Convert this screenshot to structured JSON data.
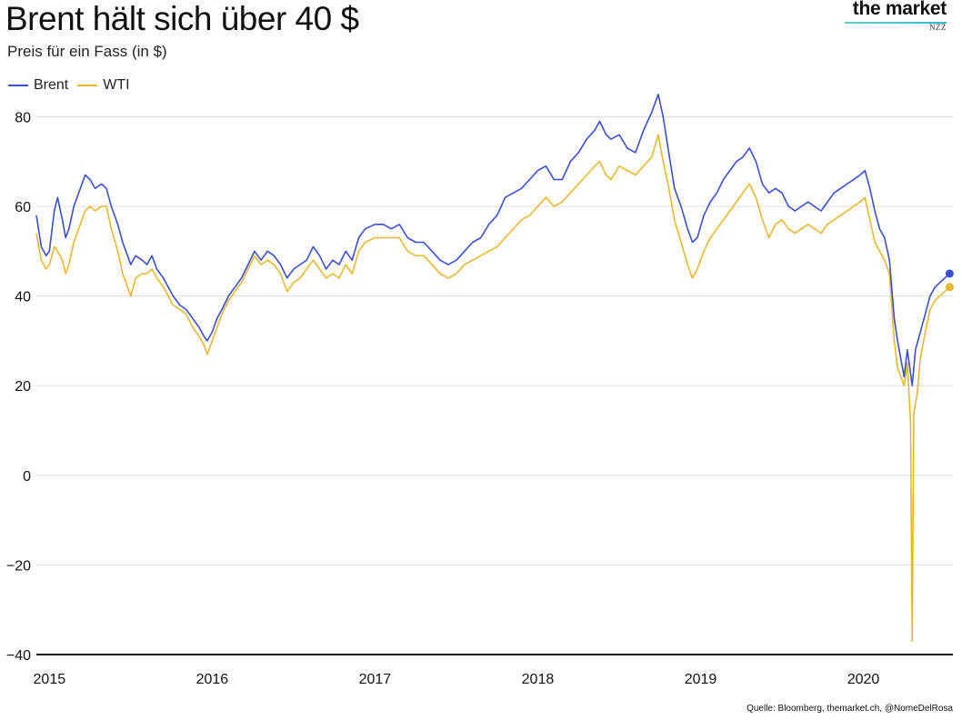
{
  "title": "Brent hält sich über 40 $",
  "subtitle": "Preis für ein Fass (in $)",
  "brand": {
    "name": "the market",
    "sub": "NZZ"
  },
  "source": "Quelle: Bloomberg,  themarket.ch, @NomeDelRosa",
  "colors": {
    "brent": "#3a4fd6",
    "wti": "#e7b82e",
    "grid": "#dddddd",
    "axis": "#111111"
  },
  "chart_data": {
    "type": "line",
    "title": "Brent hält sich über 40 $",
    "subtitle": "Preis für ein Fass (in $)",
    "xlabel": "",
    "ylabel": "",
    "xlim": [
      2014.92,
      2020.55
    ],
    "ylim": [
      -40,
      88
    ],
    "y_ticks": [
      80,
      60,
      40,
      20,
      0,
      -20,
      -40
    ],
    "y_tick_labels": [
      "80",
      "60",
      "40",
      "20",
      "0",
      "−20",
      "−40"
    ],
    "x_ticks": [
      2015,
      2016,
      2017,
      2018,
      2019,
      2020
    ],
    "x_tick_labels": [
      "2015",
      "2016",
      "2017",
      "2018",
      "2019",
      "2020"
    ],
    "grid": true,
    "legend_position": "top-left",
    "series": [
      {
        "name": "Brent",
        "color": "#3a4fd6",
        "end_marker": true,
        "points": [
          [
            2014.92,
            58
          ],
          [
            2014.95,
            51
          ],
          [
            2014.98,
            49
          ],
          [
            2015.0,
            50
          ],
          [
            2015.03,
            59
          ],
          [
            2015.05,
            62
          ],
          [
            2015.08,
            57
          ],
          [
            2015.1,
            53
          ],
          [
            2015.12,
            55
          ],
          [
            2015.15,
            60
          ],
          [
            2015.2,
            65
          ],
          [
            2015.22,
            67
          ],
          [
            2015.25,
            66
          ],
          [
            2015.28,
            64
          ],
          [
            2015.32,
            65
          ],
          [
            2015.35,
            64
          ],
          [
            2015.38,
            60
          ],
          [
            2015.42,
            56
          ],
          [
            2015.45,
            52
          ],
          [
            2015.48,
            49
          ],
          [
            2015.5,
            47
          ],
          [
            2015.53,
            49
          ],
          [
            2015.57,
            48
          ],
          [
            2015.6,
            47
          ],
          [
            2015.63,
            49
          ],
          [
            2015.66,
            46
          ],
          [
            2015.7,
            44
          ],
          [
            2015.73,
            42
          ],
          [
            2015.76,
            40
          ],
          [
            2015.8,
            38
          ],
          [
            2015.84,
            37
          ],
          [
            2015.88,
            35
          ],
          [
            2015.92,
            33
          ],
          [
            2015.95,
            31
          ],
          [
            2015.97,
            30
          ],
          [
            2016.0,
            32
          ],
          [
            2016.03,
            35
          ],
          [
            2016.06,
            37
          ],
          [
            2016.1,
            40
          ],
          [
            2016.14,
            42
          ],
          [
            2016.18,
            44
          ],
          [
            2016.22,
            47
          ],
          [
            2016.26,
            50
          ],
          [
            2016.3,
            48
          ],
          [
            2016.34,
            50
          ],
          [
            2016.38,
            49
          ],
          [
            2016.42,
            47
          ],
          [
            2016.46,
            44
          ],
          [
            2016.5,
            46
          ],
          [
            2016.54,
            47
          ],
          [
            2016.58,
            48
          ],
          [
            2016.62,
            51
          ],
          [
            2016.66,
            49
          ],
          [
            2016.7,
            46
          ],
          [
            2016.74,
            48
          ],
          [
            2016.78,
            47
          ],
          [
            2016.82,
            50
          ],
          [
            2016.86,
            48
          ],
          [
            2016.9,
            53
          ],
          [
            2016.94,
            55
          ],
          [
            2017.0,
            56
          ],
          [
            2017.05,
            56
          ],
          [
            2017.1,
            55
          ],
          [
            2017.15,
            56
          ],
          [
            2017.2,
            53
          ],
          [
            2017.25,
            52
          ],
          [
            2017.3,
            52
          ],
          [
            2017.35,
            50
          ],
          [
            2017.4,
            48
          ],
          [
            2017.45,
            47
          ],
          [
            2017.5,
            48
          ],
          [
            2017.55,
            50
          ],
          [
            2017.6,
            52
          ],
          [
            2017.65,
            53
          ],
          [
            2017.7,
            56
          ],
          [
            2017.75,
            58
          ],
          [
            2017.8,
            62
          ],
          [
            2017.85,
            63
          ],
          [
            2017.9,
            64
          ],
          [
            2017.95,
            66
          ],
          [
            2018.0,
            68
          ],
          [
            2018.05,
            69
          ],
          [
            2018.1,
            66
          ],
          [
            2018.15,
            66
          ],
          [
            2018.2,
            70
          ],
          [
            2018.25,
            72
          ],
          [
            2018.3,
            75
          ],
          [
            2018.35,
            77
          ],
          [
            2018.38,
            79
          ],
          [
            2018.42,
            76
          ],
          [
            2018.45,
            75
          ],
          [
            2018.5,
            76
          ],
          [
            2018.55,
            73
          ],
          [
            2018.6,
            72
          ],
          [
            2018.65,
            77
          ],
          [
            2018.7,
            81
          ],
          [
            2018.74,
            85
          ],
          [
            2018.77,
            80
          ],
          [
            2018.8,
            73
          ],
          [
            2018.84,
            64
          ],
          [
            2018.88,
            60
          ],
          [
            2018.92,
            55
          ],
          [
            2018.95,
            52
          ],
          [
            2018.98,
            53
          ],
          [
            2019.02,
            58
          ],
          [
            2019.06,
            61
          ],
          [
            2019.1,
            63
          ],
          [
            2019.14,
            66
          ],
          [
            2019.18,
            68
          ],
          [
            2019.22,
            70
          ],
          [
            2019.26,
            71
          ],
          [
            2019.3,
            73
          ],
          [
            2019.34,
            70
          ],
          [
            2019.38,
            65
          ],
          [
            2019.42,
            63
          ],
          [
            2019.46,
            64
          ],
          [
            2019.5,
            63
          ],
          [
            2019.54,
            60
          ],
          [
            2019.58,
            59
          ],
          [
            2019.62,
            60
          ],
          [
            2019.66,
            61
          ],
          [
            2019.7,
            60
          ],
          [
            2019.74,
            59
          ],
          [
            2019.78,
            61
          ],
          [
            2019.82,
            63
          ],
          [
            2019.86,
            64
          ],
          [
            2019.9,
            65
          ],
          [
            2019.94,
            66
          ],
          [
            2019.98,
            67
          ],
          [
            2020.01,
            68
          ],
          [
            2020.04,
            64
          ],
          [
            2020.07,
            59
          ],
          [
            2020.1,
            55
          ],
          [
            2020.13,
            53
          ],
          [
            2020.16,
            48
          ],
          [
            2020.19,
            35
          ],
          [
            2020.21,
            30
          ],
          [
            2020.23,
            26
          ],
          [
            2020.25,
            22
          ],
          [
            2020.27,
            28
          ],
          [
            2020.3,
            20
          ],
          [
            2020.32,
            28
          ],
          [
            2020.35,
            32
          ],
          [
            2020.38,
            36
          ],
          [
            2020.41,
            40
          ],
          [
            2020.44,
            42
          ],
          [
            2020.47,
            43
          ],
          [
            2020.5,
            44
          ],
          [
            2020.53,
            45
          ]
        ]
      },
      {
        "name": "WTI",
        "color": "#e7b82e",
        "end_marker": true,
        "points": [
          [
            2014.92,
            54
          ],
          [
            2014.95,
            48
          ],
          [
            2014.98,
            46
          ],
          [
            2015.0,
            47
          ],
          [
            2015.03,
            51
          ],
          [
            2015.05,
            50
          ],
          [
            2015.08,
            48
          ],
          [
            2015.1,
            45
          ],
          [
            2015.12,
            47
          ],
          [
            2015.15,
            52
          ],
          [
            2015.2,
            57
          ],
          [
            2015.22,
            59
          ],
          [
            2015.25,
            60
          ],
          [
            2015.28,
            59
          ],
          [
            2015.32,
            60
          ],
          [
            2015.35,
            60
          ],
          [
            2015.38,
            55
          ],
          [
            2015.42,
            50
          ],
          [
            2015.45,
            45
          ],
          [
            2015.48,
            42
          ],
          [
            2015.5,
            40
          ],
          [
            2015.53,
            44
          ],
          [
            2015.57,
            45
          ],
          [
            2015.6,
            45
          ],
          [
            2015.63,
            46
          ],
          [
            2015.66,
            44
          ],
          [
            2015.7,
            42
          ],
          [
            2015.73,
            40
          ],
          [
            2015.76,
            38
          ],
          [
            2015.8,
            37
          ],
          [
            2015.84,
            36
          ],
          [
            2015.88,
            33
          ],
          [
            2015.92,
            31
          ],
          [
            2015.95,
            29
          ],
          [
            2015.97,
            27
          ],
          [
            2016.0,
            30
          ],
          [
            2016.03,
            33
          ],
          [
            2016.06,
            36
          ],
          [
            2016.1,
            39
          ],
          [
            2016.14,
            41
          ],
          [
            2016.18,
            43
          ],
          [
            2016.22,
            46
          ],
          [
            2016.26,
            49
          ],
          [
            2016.3,
            47
          ],
          [
            2016.34,
            48
          ],
          [
            2016.38,
            47
          ],
          [
            2016.42,
            45
          ],
          [
            2016.46,
            41
          ],
          [
            2016.5,
            43
          ],
          [
            2016.54,
            44
          ],
          [
            2016.58,
            46
          ],
          [
            2016.62,
            48
          ],
          [
            2016.66,
            46
          ],
          [
            2016.7,
            44
          ],
          [
            2016.74,
            45
          ],
          [
            2016.78,
            44
          ],
          [
            2016.82,
            47
          ],
          [
            2016.86,
            45
          ],
          [
            2016.9,
            50
          ],
          [
            2016.94,
            52
          ],
          [
            2017.0,
            53
          ],
          [
            2017.05,
            53
          ],
          [
            2017.1,
            53
          ],
          [
            2017.15,
            53
          ],
          [
            2017.2,
            50
          ],
          [
            2017.25,
            49
          ],
          [
            2017.3,
            49
          ],
          [
            2017.35,
            47
          ],
          [
            2017.4,
            45
          ],
          [
            2017.45,
            44
          ],
          [
            2017.5,
            45
          ],
          [
            2017.55,
            47
          ],
          [
            2017.6,
            48
          ],
          [
            2017.65,
            49
          ],
          [
            2017.7,
            50
          ],
          [
            2017.75,
            51
          ],
          [
            2017.8,
            53
          ],
          [
            2017.85,
            55
          ],
          [
            2017.9,
            57
          ],
          [
            2017.95,
            58
          ],
          [
            2018.0,
            60
          ],
          [
            2018.05,
            62
          ],
          [
            2018.1,
            60
          ],
          [
            2018.15,
            61
          ],
          [
            2018.2,
            63
          ],
          [
            2018.25,
            65
          ],
          [
            2018.3,
            67
          ],
          [
            2018.35,
            69
          ],
          [
            2018.38,
            70
          ],
          [
            2018.42,
            67
          ],
          [
            2018.45,
            66
          ],
          [
            2018.5,
            69
          ],
          [
            2018.55,
            68
          ],
          [
            2018.6,
            67
          ],
          [
            2018.65,
            69
          ],
          [
            2018.7,
            71
          ],
          [
            2018.74,
            76
          ],
          [
            2018.77,
            70
          ],
          [
            2018.8,
            65
          ],
          [
            2018.84,
            57
          ],
          [
            2018.88,
            52
          ],
          [
            2018.92,
            47
          ],
          [
            2018.95,
            44
          ],
          [
            2018.98,
            46
          ],
          [
            2019.02,
            50
          ],
          [
            2019.06,
            53
          ],
          [
            2019.1,
            55
          ],
          [
            2019.14,
            57
          ],
          [
            2019.18,
            59
          ],
          [
            2019.22,
            61
          ],
          [
            2019.26,
            63
          ],
          [
            2019.3,
            65
          ],
          [
            2019.34,
            62
          ],
          [
            2019.38,
            57
          ],
          [
            2019.42,
            53
          ],
          [
            2019.46,
            56
          ],
          [
            2019.5,
            57
          ],
          [
            2019.54,
            55
          ],
          [
            2019.58,
            54
          ],
          [
            2019.62,
            55
          ],
          [
            2019.66,
            56
          ],
          [
            2019.7,
            55
          ],
          [
            2019.74,
            54
          ],
          [
            2019.78,
            56
          ],
          [
            2019.82,
            57
          ],
          [
            2019.86,
            58
          ],
          [
            2019.9,
            59
          ],
          [
            2019.94,
            60
          ],
          [
            2019.98,
            61
          ],
          [
            2020.01,
            62
          ],
          [
            2020.04,
            57
          ],
          [
            2020.07,
            52
          ],
          [
            2020.1,
            50
          ],
          [
            2020.13,
            48
          ],
          [
            2020.16,
            45
          ],
          [
            2020.19,
            30
          ],
          [
            2020.21,
            24
          ],
          [
            2020.23,
            22
          ],
          [
            2020.25,
            20
          ],
          [
            2020.27,
            25
          ],
          [
            2020.29,
            12
          ],
          [
            2020.3,
            -37
          ],
          [
            2020.31,
            14
          ],
          [
            2020.33,
            18
          ],
          [
            2020.35,
            26
          ],
          [
            2020.38,
            32
          ],
          [
            2020.41,
            37
          ],
          [
            2020.44,
            39
          ],
          [
            2020.47,
            40
          ],
          [
            2020.5,
            41
          ],
          [
            2020.53,
            42
          ]
        ]
      }
    ]
  }
}
